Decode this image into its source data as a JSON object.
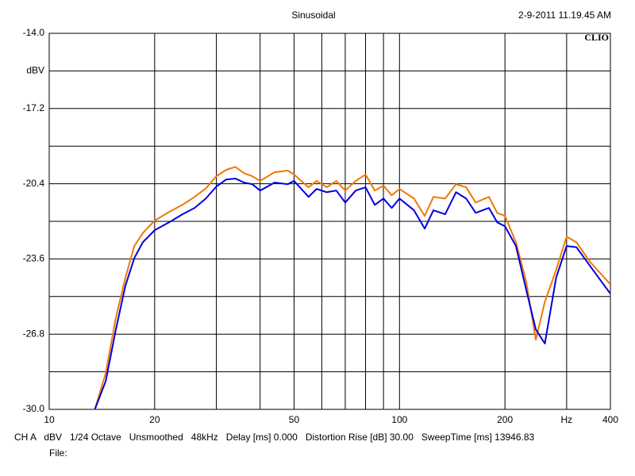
{
  "chart_data": {
    "type": "line",
    "title": "Sinusoidal",
    "timestamp": "2-9-2011 11.19.45 AM",
    "brand": "CLIO",
    "status_line": "CH A   dBV   1/24 Octave   Unsmoothed   48kHz   Delay [ms] 0.000   Distortion Rise [dB] 30.00   SweepTime [ms] 13946.83",
    "file_label": "File:",
    "xlog": true,
    "grid": true,
    "xlim": [
      10,
      400
    ],
    "ylim": [
      -30,
      -14
    ],
    "xticks": [
      10,
      20,
      50,
      100,
      200,
      {
        "value": 300,
        "label": "Hz"
      },
      400
    ],
    "xminorticks": [
      30,
      40,
      60,
      70,
      80,
      90
    ],
    "yticks": [
      {
        "value": -14,
        "label": "-14.0"
      },
      {
        "value": -15.6,
        "label": "dBV"
      },
      -17.2,
      -20.4,
      -23.6,
      -26.8,
      {
        "value": -30,
        "label": "-30.0"
      }
    ],
    "yminorticks": [
      -18.8,
      -22.0,
      -25.2,
      -28.4
    ],
    "x": [
      13.5,
      14.5,
      15.5,
      16.5,
      17.5,
      18.5,
      20,
      22,
      24,
      26,
      28,
      30,
      32,
      34,
      36,
      38,
      40,
      44,
      48,
      50,
      55,
      58,
      62,
      66,
      70,
      75,
      80,
      85,
      90,
      95,
      100,
      110,
      118,
      125,
      135,
      145,
      155,
      165,
      180,
      190,
      200,
      215,
      230,
      245,
      260,
      280,
      300,
      320,
      350,
      400
    ],
    "series": [
      {
        "color": "#f07800",
        "values": [
          -30.0,
          -28.46,
          -26.1,
          -24.4,
          -23.05,
          -22.5,
          -21.97,
          -21.6,
          -21.3,
          -20.96,
          -20.6,
          -20.08,
          -19.81,
          -19.68,
          -19.95,
          -20.08,
          -20.28,
          -19.91,
          -19.84,
          -20.01,
          -20.55,
          -20.28,
          -20.55,
          -20.28,
          -20.69,
          -20.28,
          -20.01,
          -20.69,
          -20.48,
          -20.89,
          -20.62,
          -21.03,
          -21.77,
          -20.96,
          -21.03,
          -20.42,
          -20.55,
          -21.2,
          -20.96,
          -21.64,
          -21.77,
          -22.89,
          -24.57,
          -27.04,
          -25.42,
          -24.07,
          -22.65,
          -22.89,
          -23.73,
          -24.68
        ]
      },
      {
        "color": "#0000e0",
        "values": [
          -30.0,
          -28.8,
          -26.6,
          -24.74,
          -23.56,
          -22.89,
          -22.38,
          -22.04,
          -21.7,
          -21.43,
          -21.03,
          -20.52,
          -20.22,
          -20.18,
          -20.35,
          -20.42,
          -20.69,
          -20.35,
          -20.42,
          -20.28,
          -20.96,
          -20.62,
          -20.76,
          -20.69,
          -21.2,
          -20.69,
          -20.55,
          -21.3,
          -21.03,
          -21.43,
          -21.03,
          -21.53,
          -22.31,
          -21.53,
          -21.7,
          -20.76,
          -21.03,
          -21.64,
          -21.43,
          -22.04,
          -22.21,
          -23.05,
          -24.91,
          -26.6,
          -27.2,
          -24.4,
          -23.05,
          -23.1,
          -23.9,
          -25.08
        ]
      }
    ]
  }
}
